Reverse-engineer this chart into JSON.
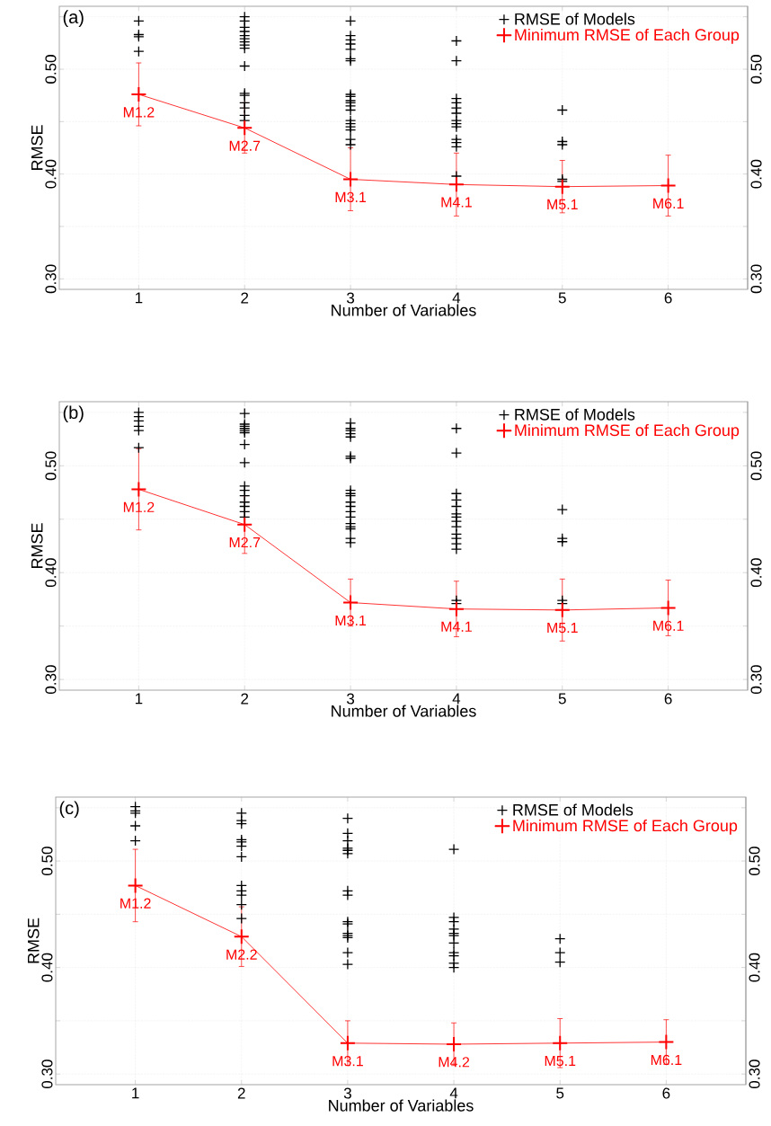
{
  "chart_data": [
    {
      "type": "line",
      "title": "(a)",
      "xlabel": "Number of Variables",
      "ylabel": "RMSE",
      "xlim": [
        0.25,
        6.75
      ],
      "xticks": [
        1,
        2,
        3,
        4,
        5,
        6
      ],
      "ylim": [
        0.29,
        0.56
      ],
      "yticks": [
        {
          "value": 0.3,
          "label": "0.30"
        },
        {
          "value": 0.35,
          "label": null
        },
        {
          "value": 0.4,
          "label": "0.40"
        },
        {
          "value": 0.45,
          "label": null
        },
        {
          "value": 0.5,
          "label": "0.50"
        },
        {
          "value": 0.55,
          "label": null
        }
      ],
      "y2lim": [
        0.29,
        0.56
      ],
      "y2ticks": [
        {
          "value": 0.3,
          "label": "0.30"
        },
        {
          "value": 0.35,
          "label": null
        },
        {
          "value": 0.4,
          "label": "0.40"
        },
        {
          "value": 0.45,
          "label": null
        },
        {
          "value": 0.5,
          "label": "0.50"
        },
        {
          "value": 0.55,
          "label": null
        }
      ],
      "grid": true,
      "legend": "top right",
      "series": [
        {
          "name": "RMSE of Models",
          "type": "scatter",
          "color": "#000000",
          "marker": "cross",
          "x": [
            1,
            1,
            1,
            1,
            2,
            2,
            2,
            2,
            2,
            2,
            2,
            2,
            2,
            2,
            2,
            2,
            2,
            2,
            2,
            2,
            3,
            3,
            3,
            3,
            3,
            3,
            3,
            3,
            3,
            3,
            3,
            3,
            3,
            3,
            3,
            3,
            3,
            3,
            3,
            4,
            4,
            4,
            4,
            4,
            4,
            4,
            4,
            4,
            4,
            4,
            4,
            4,
            5,
            5,
            5,
            5,
            5
          ],
          "values": [
            0.546,
            0.533,
            0.531,
            0.517,
            0.55,
            0.546,
            0.54,
            0.536,
            0.532,
            0.529,
            0.526,
            0.523,
            0.52,
            0.503,
            0.477,
            0.475,
            0.468,
            0.463,
            0.456,
            0.451,
            0.546,
            0.532,
            0.528,
            0.524,
            0.519,
            0.51,
            0.508,
            0.476,
            0.474,
            0.47,
            0.468,
            0.465,
            0.461,
            0.451,
            0.448,
            0.445,
            0.442,
            0.433,
            0.428,
            0.527,
            0.508,
            0.472,
            0.468,
            0.463,
            0.458,
            0.451,
            0.448,
            0.445,
            0.433,
            0.43,
            0.426,
            0.398,
            0.461,
            0.431,
            0.428,
            0.395,
            0.393
          ]
        },
        {
          "name": "Minimum RMSE of Each Group",
          "type": "line",
          "color": "#ff0000",
          "marker": "cross",
          "line_style": "solid",
          "x": [
            1,
            2,
            3,
            4,
            5,
            6
          ],
          "values": [
            0.476,
            0.444,
            0.395,
            0.39,
            0.388,
            0.389
          ],
          "errors": [
            0.03,
            0.024,
            0.03,
            0.03,
            0.025,
            0.029
          ]
        }
      ],
      "annotations": [
        {
          "text": "M1.2",
          "x": 1,
          "y": 0.476
        },
        {
          "text": "M2.7",
          "x": 2,
          "y": 0.444
        },
        {
          "text": "M3.1",
          "x": 3,
          "y": 0.395
        },
        {
          "text": "M4.1",
          "x": 4,
          "y": 0.39
        },
        {
          "text": "M5.1",
          "x": 5,
          "y": 0.388
        },
        {
          "text": "M6.1",
          "x": 6,
          "y": 0.389
        }
      ]
    },
    {
      "type": "line",
      "title": "(b)",
      "xlabel": "Number of Variables",
      "ylabel": "RMSE",
      "xlim": [
        0.25,
        6.75
      ],
      "xticks": [
        1,
        2,
        3,
        4,
        5,
        6
      ],
      "ylim": [
        0.29,
        0.56
      ],
      "yticks": [
        {
          "value": 0.3,
          "label": "0.30"
        },
        {
          "value": 0.35,
          "label": null
        },
        {
          "value": 0.4,
          "label": "0.40"
        },
        {
          "value": 0.45,
          "label": null
        },
        {
          "value": 0.5,
          "label": "0.50"
        },
        {
          "value": 0.55,
          "label": null
        }
      ],
      "y2lim": [
        0.29,
        0.56
      ],
      "y2ticks": [
        {
          "value": 0.3,
          "label": "0.30"
        },
        {
          "value": 0.35,
          "label": null
        },
        {
          "value": 0.4,
          "label": "0.40"
        },
        {
          "value": 0.45,
          "label": null
        },
        {
          "value": 0.5,
          "label": "0.50"
        },
        {
          "value": 0.55,
          "label": null
        }
      ],
      "grid": true,
      "legend": "top right",
      "series": [
        {
          "name": "RMSE of Models",
          "type": "scatter",
          "color": "#000000",
          "marker": "cross",
          "x": [
            1,
            1,
            1,
            1,
            1,
            1,
            2,
            2,
            2,
            2,
            2,
            2,
            2,
            2,
            2,
            2,
            2,
            2,
            2,
            2,
            2,
            3,
            3,
            3,
            3,
            3,
            3,
            3,
            3,
            3,
            3,
            3,
            3,
            3,
            3,
            3,
            3,
            3,
            3,
            3,
            4,
            4,
            4,
            4,
            4,
            4,
            4,
            4,
            4,
            4,
            4,
            4,
            4,
            4,
            4,
            5,
            5,
            5,
            5,
            5
          ],
          "values": [
            0.55,
            0.546,
            0.542,
            0.537,
            0.533,
            0.517,
            0.549,
            0.539,
            0.537,
            0.535,
            0.533,
            0.531,
            0.52,
            0.503,
            0.481,
            0.477,
            0.472,
            0.466,
            0.462,
            0.457,
            0.452,
            0.54,
            0.535,
            0.533,
            0.53,
            0.527,
            0.509,
            0.507,
            0.477,
            0.474,
            0.472,
            0.466,
            0.462,
            0.457,
            0.452,
            0.446,
            0.443,
            0.441,
            0.432,
            0.428,
            0.535,
            0.512,
            0.474,
            0.468,
            0.462,
            0.455,
            0.452,
            0.448,
            0.443,
            0.436,
            0.432,
            0.427,
            0.422,
            0.374,
            0.371,
            0.459,
            0.432,
            0.429,
            0.374,
            0.371
          ]
        },
        {
          "name": "Minimum RMSE of Each Group",
          "type": "line",
          "color": "#ff0000",
          "marker": "cross",
          "line_style": "solid",
          "x": [
            1,
            2,
            3,
            4,
            5,
            6
          ],
          "values": [
            0.478,
            0.445,
            0.372,
            0.366,
            0.365,
            0.367
          ],
          "errors": [
            0.038,
            0.027,
            0.022,
            0.026,
            0.029,
            0.026
          ]
        }
      ],
      "annotations": [
        {
          "text": "M1.2",
          "x": 1,
          "y": 0.478
        },
        {
          "text": "M2.7",
          "x": 2,
          "y": 0.445
        },
        {
          "text": "M3.1",
          "x": 3,
          "y": 0.372
        },
        {
          "text": "M4.1",
          "x": 4,
          "y": 0.366
        },
        {
          "text": "M5.1",
          "x": 5,
          "y": 0.365
        },
        {
          "text": "M6.1",
          "x": 6,
          "y": 0.367
        }
      ]
    },
    {
      "type": "line",
      "title": "(c)",
      "xlabel": "Number of Variables",
      "ylabel": "RMSE",
      "xlim": [
        0.25,
        6.75
      ],
      "xticks": [
        1,
        2,
        3,
        4,
        5,
        6
      ],
      "ylim": [
        0.29,
        0.56
      ],
      "yticks": [
        {
          "value": 0.3,
          "label": "0.30"
        },
        {
          "value": 0.35,
          "label": null
        },
        {
          "value": 0.4,
          "label": "0.40"
        },
        {
          "value": 0.45,
          "label": null
        },
        {
          "value": 0.5,
          "label": "0.50"
        },
        {
          "value": 0.55,
          "label": null
        }
      ],
      "y2lim": [
        0.29,
        0.56
      ],
      "y2ticks": [
        {
          "value": 0.3,
          "label": "0.30"
        },
        {
          "value": 0.35,
          "label": null
        },
        {
          "value": 0.4,
          "label": "0.40"
        },
        {
          "value": 0.45,
          "label": null
        },
        {
          "value": 0.5,
          "label": "0.50"
        },
        {
          "value": 0.55,
          "label": null
        }
      ],
      "grid": true,
      "legend": "top right",
      "series": [
        {
          "name": "RMSE of Models",
          "type": "scatter",
          "color": "#000000",
          "marker": "cross",
          "x": [
            1,
            1,
            1,
            1,
            1,
            2,
            2,
            2,
            2,
            2,
            2,
            2,
            2,
            2,
            2,
            2,
            2,
            3,
            3,
            3,
            3,
            3,
            3,
            3,
            3,
            3,
            3,
            3,
            3,
            3,
            3,
            3,
            4,
            4,
            4,
            4,
            4,
            4,
            4,
            4,
            4,
            4,
            4,
            5,
            5,
            5
          ],
          "values": [
            0.551,
            0.547,
            0.545,
            0.533,
            0.519,
            0.545,
            0.538,
            0.535,
            0.52,
            0.518,
            0.514,
            0.504,
            0.477,
            0.472,
            0.468,
            0.459,
            0.446,
            0.54,
            0.526,
            0.519,
            0.512,
            0.51,
            0.507,
            0.472,
            0.468,
            0.443,
            0.441,
            0.432,
            0.43,
            0.428,
            0.414,
            0.403,
            0.511,
            0.447,
            0.443,
            0.436,
            0.432,
            0.43,
            0.423,
            0.414,
            0.411,
            0.404,
            0.4,
            0.427,
            0.414,
            0.405
          ]
        },
        {
          "name": "Minimum RMSE of Each Group",
          "type": "line",
          "color": "#ff0000",
          "marker": "cross",
          "line_style": "solid",
          "x": [
            1,
            2,
            3,
            4,
            5,
            6
          ],
          "values": [
            0.477,
            0.429,
            0.329,
            0.328,
            0.329,
            0.33
          ],
          "errors": [
            0.034,
            0.028,
            0.021,
            0.02,
            0.023,
            0.021
          ]
        }
      ],
      "annotations": [
        {
          "text": "M1.2",
          "x": 1,
          "y": 0.477
        },
        {
          "text": "M2.2",
          "x": 2,
          "y": 0.429
        },
        {
          "text": "M3.1",
          "x": 3,
          "y": 0.329
        },
        {
          "text": "M4.2",
          "x": 4,
          "y": 0.328
        },
        {
          "text": "M5.1",
          "x": 5,
          "y": 0.329
        },
        {
          "text": "M6.1",
          "x": 6,
          "y": 0.33
        }
      ]
    }
  ]
}
